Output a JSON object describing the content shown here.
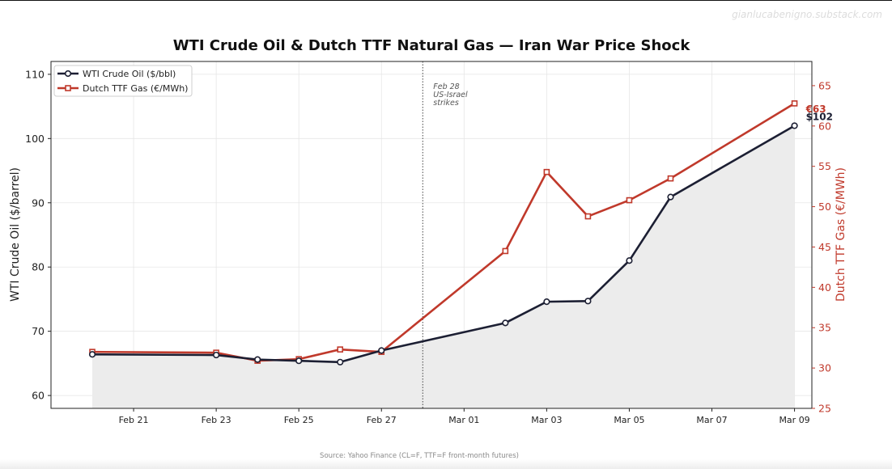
{
  "watermark": "gianlucabenigno.substack.com",
  "chart_data": {
    "type": "line",
    "title": "WTI Crude Oil & Dutch TTF Natural Gas — Iran War Price Shock",
    "source": "Source: Yahoo Finance (CL=F, TTF=F front-month futures)",
    "ylabel_left": "WTI Crude Oil ($/barrel)",
    "ylabel_right": "Dutch TTF Gas (€/MWh)",
    "ylim_left": [
      58,
      112
    ],
    "ylim_right": [
      25,
      68
    ],
    "xlim": [
      "2026-02-19",
      "2026-03-09"
    ],
    "yticks_left": [
      60,
      70,
      80,
      90,
      100,
      110
    ],
    "yticks_right": [
      25,
      30,
      35,
      40,
      45,
      50,
      55,
      60,
      65
    ],
    "xticks": [
      {
        "date": "2026-02-21",
        "label": "Feb 21"
      },
      {
        "date": "2026-02-23",
        "label": "Feb 23"
      },
      {
        "date": "2026-02-25",
        "label": "Feb 25"
      },
      {
        "date": "2026-02-27",
        "label": "Feb 27"
      },
      {
        "date": "2026-03-01",
        "label": "Mar 01"
      },
      {
        "date": "2026-03-03",
        "label": "Mar 03"
      },
      {
        "date": "2026-03-05",
        "label": "Mar 05"
      },
      {
        "date": "2026-03-07",
        "label": "Mar 07"
      },
      {
        "date": "2026-03-09",
        "label": "Mar 09"
      }
    ],
    "grid": true,
    "legend_position": "top-left",
    "series": [
      {
        "name": "WTI Crude Oil ($/bbl)",
        "axis": "left",
        "color": "#1c1f33",
        "marker": "circle",
        "fill_below": true,
        "points": [
          {
            "x": "2026-02-20",
            "y": 66.4
          },
          {
            "x": "2026-02-23",
            "y": 66.3
          },
          {
            "x": "2026-02-24",
            "y": 65.6
          },
          {
            "x": "2026-02-25",
            "y": 65.4
          },
          {
            "x": "2026-02-26",
            "y": 65.2
          },
          {
            "x": "2026-02-27",
            "y": 67.0
          },
          {
            "x": "2026-03-02",
            "y": 71.3
          },
          {
            "x": "2026-03-03",
            "y": 74.6
          },
          {
            "x": "2026-03-04",
            "y": 74.7
          },
          {
            "x": "2026-03-05",
            "y": 81.0
          },
          {
            "x": "2026-03-06",
            "y": 90.9
          },
          {
            "x": "2026-03-09",
            "y": 102.0
          }
        ],
        "end_label": "$102"
      },
      {
        "name": "Dutch TTF Gas (€/MWh)",
        "axis": "right",
        "color": "#c0392b",
        "marker": "square",
        "points": [
          {
            "x": "2026-02-20",
            "y": 32.0
          },
          {
            "x": "2026-02-23",
            "y": 31.9
          },
          {
            "x": "2026-02-24",
            "y": 30.9
          },
          {
            "x": "2026-02-25",
            "y": 31.1
          },
          {
            "x": "2026-02-26",
            "y": 32.3
          },
          {
            "x": "2026-02-27",
            "y": 32.0
          },
          {
            "x": "2026-03-02",
            "y": 44.5
          },
          {
            "x": "2026-03-03",
            "y": 54.3
          },
          {
            "x": "2026-03-04",
            "y": 48.8
          },
          {
            "x": "2026-03-05",
            "y": 50.8
          },
          {
            "x": "2026-03-06",
            "y": 53.5
          },
          {
            "x": "2026-03-09",
            "y": 62.8
          }
        ],
        "end_label": "€63"
      }
    ],
    "annotations": [
      {
        "x": "2026-02-28",
        "style": "dotted-vertical-line",
        "lines": [
          "Feb 28",
          "US-Israel",
          "strikes"
        ]
      }
    ]
  }
}
